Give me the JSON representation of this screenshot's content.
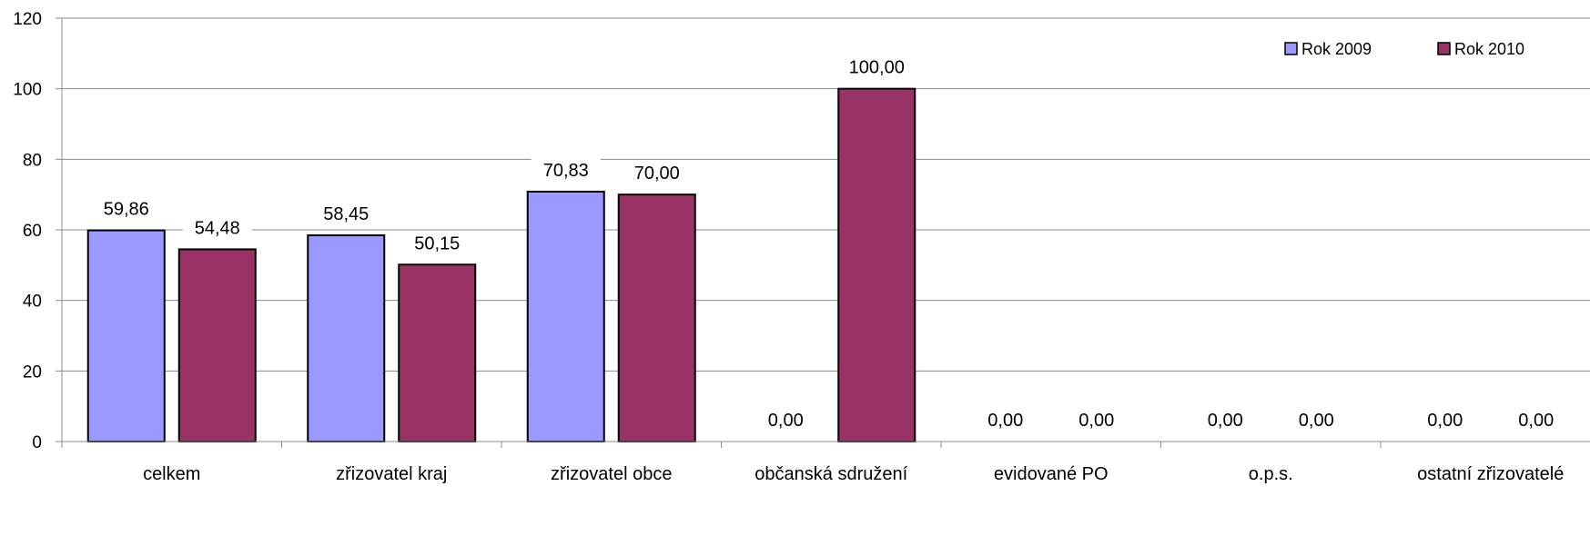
{
  "chart_data": {
    "type": "bar",
    "categories": [
      "celkem",
      "zřizovatel kraj",
      "zřizovatel obce",
      "občanská sdružení",
      "evidované PO",
      "o.p.s.",
      "ostatní zřizovatelé"
    ],
    "series": [
      {
        "name": "Rok 2009",
        "values": [
          59.86,
          58.45,
          70.83,
          0,
          0,
          0,
          0
        ],
        "labels": [
          "59,86",
          "58,45",
          "70,83",
          "0,00",
          "0,00",
          "0,00",
          "0,00"
        ],
        "color": "#9999ff"
      },
      {
        "name": "Rok 2010",
        "values": [
          54.48,
          50.15,
          70.0,
          100.0,
          0,
          0,
          0
        ],
        "labels": [
          "54,48",
          "50,15",
          "70,00",
          "100,00",
          "0,00",
          "0,00",
          "0,00"
        ],
        "color": "#993366"
      }
    ],
    "yticks": [
      "0",
      "20",
      "40",
      "60",
      "80",
      "100",
      "120"
    ],
    "ylim": [
      0,
      120
    ],
    "grid": true,
    "legend_position": "top-right"
  }
}
